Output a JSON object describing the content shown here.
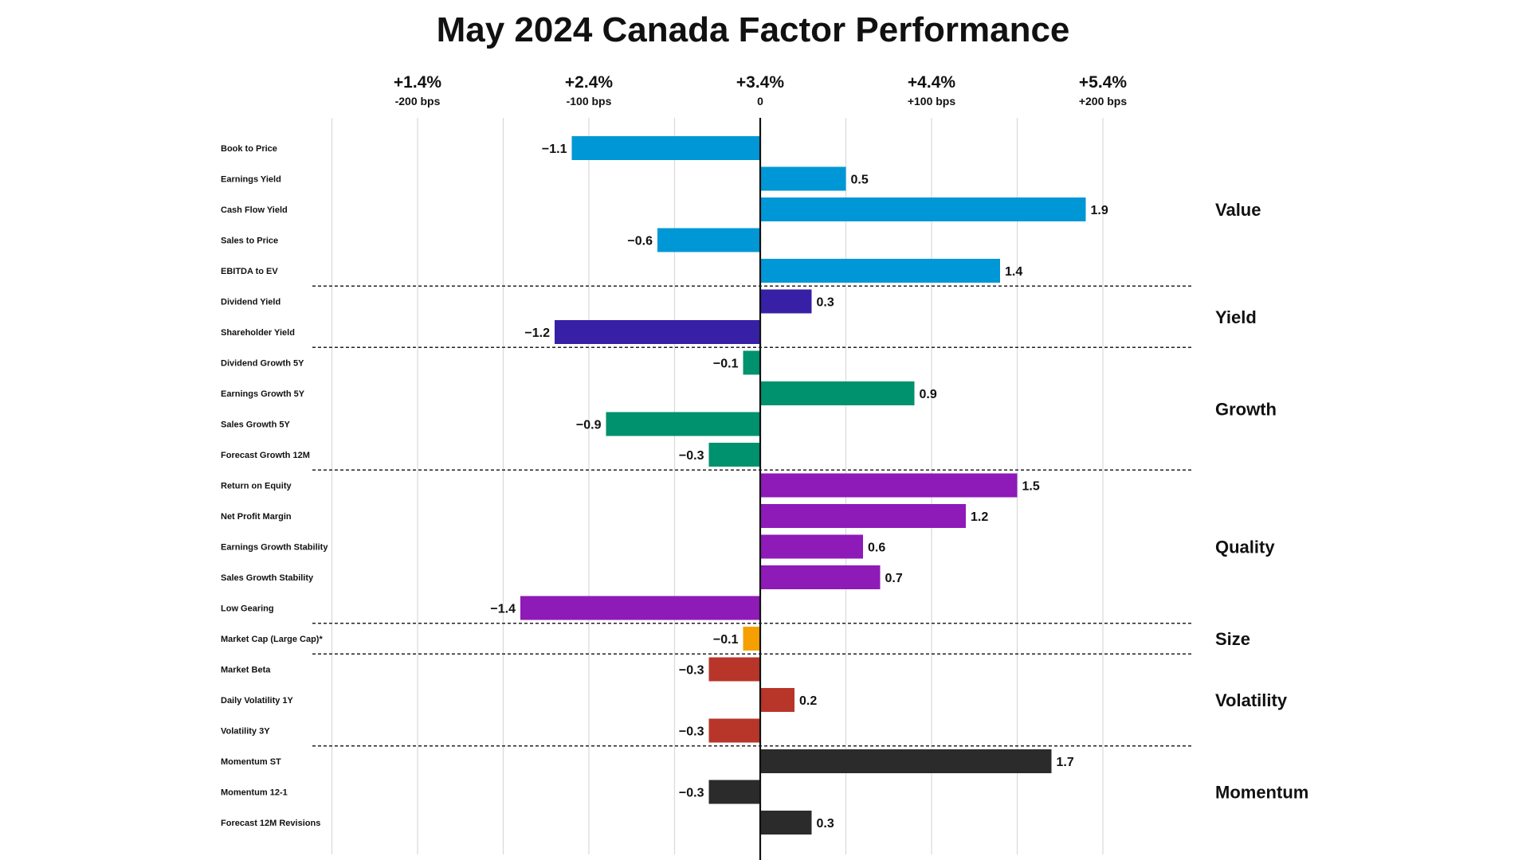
{
  "chart_data": {
    "type": "bar",
    "orientation": "horizontal",
    "title": "May 2024 Canada Factor Performance",
    "xlim": [
      -250,
      250
    ],
    "x_ticks": [
      {
        "value": -200,
        "pct_label": "+1.4%",
        "bps_label": "-200 bps"
      },
      {
        "value": -100,
        "pct_label": "+2.4%",
        "bps_label": "-100 bps"
      },
      {
        "value": 0,
        "pct_label": "+3.4%",
        "bps_label": "0"
      },
      {
        "value": 100,
        "pct_label": "+4.4%",
        "bps_label": "+100 bps"
      },
      {
        "value": 200,
        "pct_label": "+5.4%",
        "bps_label": "+200 bps"
      }
    ],
    "grid": true,
    "groups": [
      {
        "name": "Value",
        "color": "#0097D6",
        "factors": [
          {
            "label": "Book to Price",
            "value": -1.1
          },
          {
            "label": "Earnings Yield",
            "value": 0.5
          },
          {
            "label": "Cash Flow Yield",
            "value": 1.9
          },
          {
            "label": "Sales to Price",
            "value": -0.6
          },
          {
            "label": "EBITDA to EV",
            "value": 1.4
          }
        ]
      },
      {
        "name": "Yield",
        "color": "#3720A6",
        "factors": [
          {
            "label": "Dividend Yield",
            "value": 0.3
          },
          {
            "label": "Shareholder Yield",
            "value": -1.2
          }
        ]
      },
      {
        "name": "Growth",
        "color": "#00916E",
        "factors": [
          {
            "label": "Dividend Growth 5Y",
            "value": -0.1
          },
          {
            "label": "Earnings Growth 5Y",
            "value": 0.9
          },
          {
            "label": "Sales Growth 5Y",
            "value": -0.9
          },
          {
            "label": "Forecast Growth 12M",
            "value": -0.3
          }
        ]
      },
      {
        "name": "Quality",
        "color": "#8E1AB8",
        "factors": [
          {
            "label": "Return on Equity",
            "value": 1.5
          },
          {
            "label": "Net Profit Margin",
            "value": 1.2
          },
          {
            "label": "Earnings Growth Stability",
            "value": 0.6
          },
          {
            "label": "Sales Growth Stability",
            "value": 0.7
          },
          {
            "label": "Low Gearing",
            "value": -1.4
          }
        ]
      },
      {
        "name": "Size",
        "color": "#F5A000",
        "factors": [
          {
            "label": "Market Cap (Large Cap)*",
            "value": -0.1
          }
        ]
      },
      {
        "name": "Volatility",
        "color": "#B8352A",
        "factors": [
          {
            "label": "Market Beta",
            "value": -0.3
          },
          {
            "label": "Daily Volatility 1Y",
            "value": 0.2
          },
          {
            "label": "Volatility 3Y",
            "value": -0.3
          }
        ]
      },
      {
        "name": "Momentum",
        "color": "#2B2B2B",
        "factors": [
          {
            "label": "Momentum ST",
            "value": 1.7
          },
          {
            "label": "Momentum 12-1",
            "value": -0.3
          },
          {
            "label": "Forecast 12M Revisions",
            "value": 0.3
          }
        ]
      }
    ]
  }
}
